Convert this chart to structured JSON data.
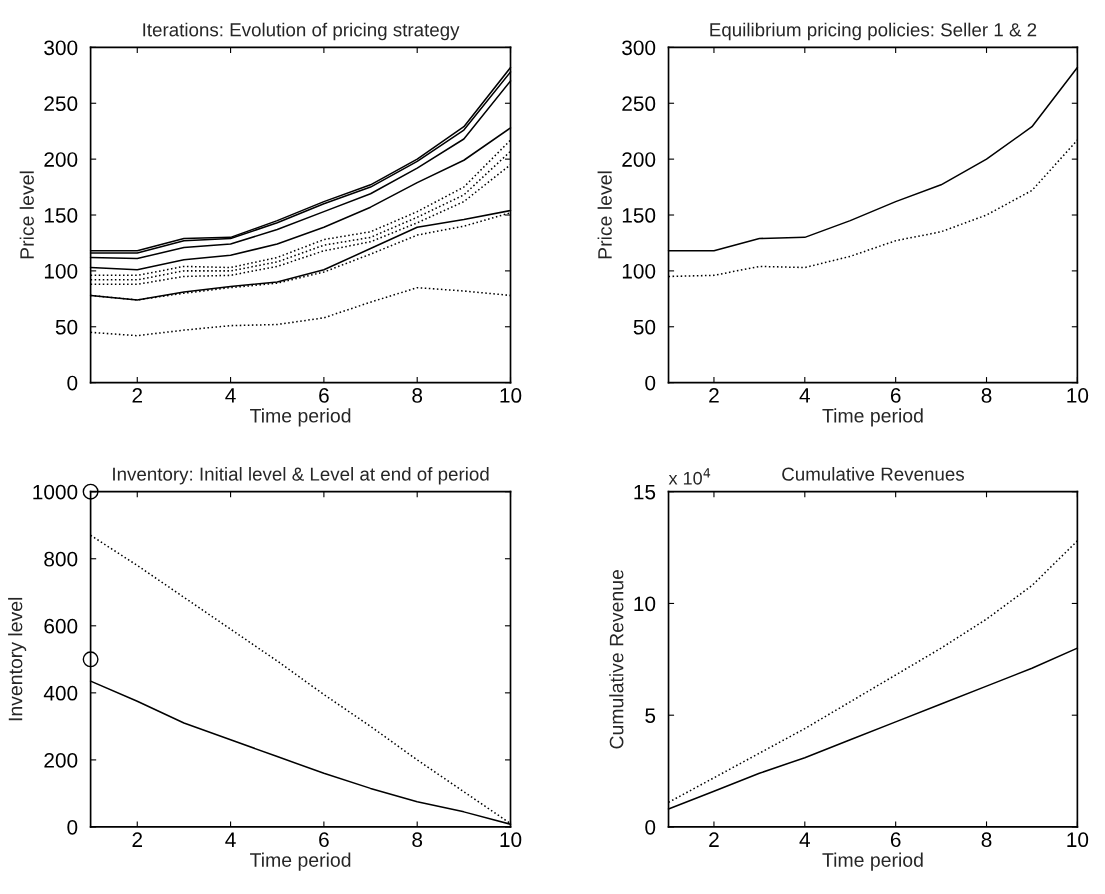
{
  "chart_data": [
    {
      "type": "line",
      "title": "Iterations: Evolution of pricing strategy",
      "xlabel": "Time period",
      "ylabel": "Price level",
      "x": [
        1,
        2,
        3,
        4,
        5,
        6,
        7,
        8,
        9,
        10
      ],
      "xlim": [
        1,
        10
      ],
      "xticks": [
        2,
        4,
        6,
        8,
        10
      ],
      "ylim": [
        0,
        300
      ],
      "yticks": [
        0,
        50,
        100,
        150,
        200,
        250,
        300
      ],
      "series": [
        {
          "color": "#000000",
          "line_style": "solid",
          "values": [
            118,
            118,
            129,
            130,
            145,
            162,
            177,
            200,
            229,
            282
          ]
        },
        {
          "color": "#000000",
          "line_style": "solid",
          "values": [
            116,
            116,
            127,
            129,
            143,
            160,
            175,
            198,
            226,
            278
          ]
        },
        {
          "color": "#000000",
          "line_style": "solid",
          "values": [
            112,
            111,
            121,
            124,
            137,
            153,
            169,
            192,
            218,
            270
          ]
        },
        {
          "color": "#000000",
          "line_style": "solid",
          "values": [
            103,
            101,
            110,
            114,
            124,
            139,
            157,
            179,
            199,
            228
          ]
        },
        {
          "color": "#000000",
          "line_style": "solid",
          "values": [
            78,
            74,
            81,
            86,
            90,
            101,
            120,
            139,
            146,
            154
          ]
        },
        {
          "color": "#000000",
          "line_style": "dotted",
          "values": [
            96,
            96,
            104,
            103,
            112,
            128,
            135,
            153,
            175,
            217
          ]
        },
        {
          "color": "#000000",
          "line_style": "dotted",
          "values": [
            92,
            92,
            100,
            100,
            108,
            123,
            130,
            148,
            168,
            207
          ]
        },
        {
          "color": "#000000",
          "line_style": "dotted",
          "values": [
            88,
            88,
            95,
            96,
            104,
            118,
            126,
            143,
            162,
            195
          ]
        },
        {
          "color": "#000000",
          "line_style": "dotted",
          "values": [
            78,
            74,
            80,
            85,
            89,
            99,
            115,
            132,
            140,
            152
          ]
        },
        {
          "color": "#000000",
          "line_style": "dotted",
          "values": [
            45,
            42,
            47,
            51,
            52,
            58,
            72,
            85,
            82,
            78
          ]
        }
      ]
    },
    {
      "type": "line",
      "title": "Equilibrium pricing policies: Seller 1 & 2",
      "xlabel": "Time period",
      "ylabel": "Price level",
      "x": [
        1,
        2,
        3,
        4,
        5,
        6,
        7,
        8,
        9,
        10
      ],
      "xlim": [
        1,
        10
      ],
      "xticks": [
        2,
        4,
        6,
        8,
        10
      ],
      "ylim": [
        0,
        300
      ],
      "yticks": [
        0,
        50,
        100,
        150,
        200,
        250,
        300
      ],
      "series": [
        {
          "color": "#000000",
          "line_style": "solid",
          "values": [
            118,
            118,
            129,
            130,
            145,
            162,
            177,
            200,
            229,
            282
          ]
        },
        {
          "color": "#000000",
          "line_style": "dotted",
          "values": [
            95,
            96,
            104,
            103,
            113,
            127,
            135,
            150,
            172,
            217
          ]
        }
      ]
    },
    {
      "type": "line",
      "title": "Inventory: Initial level & Level at end of period",
      "xlabel": "Time period",
      "ylabel": "Inventory level",
      "x": [
        1,
        2,
        3,
        4,
        5,
        6,
        7,
        8,
        9,
        10
      ],
      "xlim": [
        1,
        10
      ],
      "xticks": [
        2,
        4,
        6,
        8,
        10
      ],
      "ylim": [
        0,
        1000
      ],
      "yticks": [
        0,
        200,
        400,
        600,
        800,
        1000
      ],
      "series": [
        {
          "color": "#000000",
          "line_style": "solid",
          "values": [
            435,
            375,
            310,
            260,
            210,
            160,
            115,
            75,
            45,
            8
          ]
        },
        {
          "color": "#000000",
          "line_style": "dotted",
          "values": [
            870,
            780,
            685,
            590,
            495,
            395,
            300,
            200,
            105,
            10
          ]
        },
        {
          "type": "scatter",
          "color": "#000000",
          "marker": "circle",
          "x": [
            1,
            1
          ],
          "values": [
            1000,
            500
          ]
        }
      ]
    },
    {
      "type": "line",
      "title": "Cumulative Revenues",
      "xlabel": "Time period",
      "ylabel": "Cumulative Revenue",
      "annotations": [
        "x 10$^{4}$"
      ],
      "x": [
        1,
        2,
        3,
        4,
        5,
        6,
        7,
        8,
        9,
        10
      ],
      "xlim": [
        1,
        10
      ],
      "xticks": [
        2,
        4,
        6,
        8,
        10
      ],
      "ylim": [
        0,
        15
      ],
      "yticks": [
        0,
        5,
        10,
        15
      ],
      "series": [
        {
          "color": "#000000",
          "line_style": "solid",
          "values": [
            0.8,
            1.6,
            2.4,
            3.1,
            3.9,
            4.7,
            5.5,
            6.3,
            7.1,
            8.0
          ]
        },
        {
          "color": "#000000",
          "line_style": "dotted",
          "values": [
            1.1,
            2.2,
            3.3,
            4.4,
            5.6,
            6.8,
            8.0,
            9.3,
            10.8,
            12.8
          ]
        }
      ]
    }
  ]
}
